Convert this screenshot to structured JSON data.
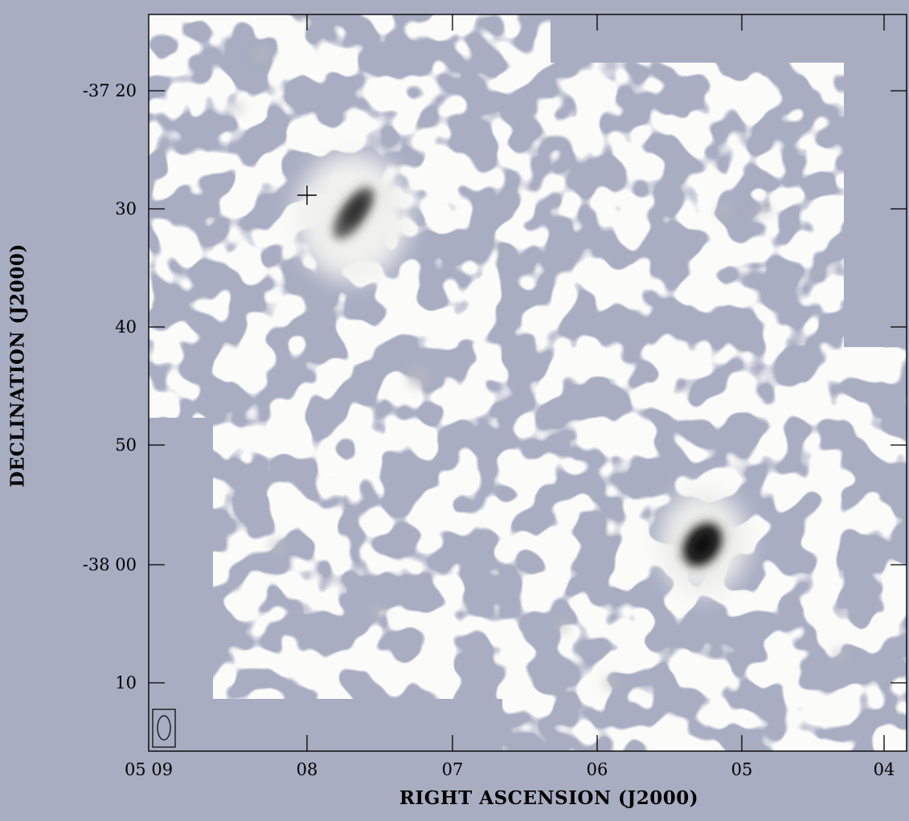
{
  "figure": {
    "xaxis_title": "RIGHT ASCENSION (J2000)",
    "yaxis_title": "DECLINATION (J2000)",
    "ra_ticks": [
      "05 09",
      "08",
      "07",
      "06",
      "05",
      "04"
    ],
    "dec_ticks": [
      "-37 20",
      "30",
      "40",
      "50",
      "-38 00",
      "10"
    ]
  },
  "colors": {
    "background": "#a8adc2",
    "map_blank": "#a8adc2",
    "emission_low": "#f6f6f4",
    "emission_high": "#1a1a1a"
  }
}
